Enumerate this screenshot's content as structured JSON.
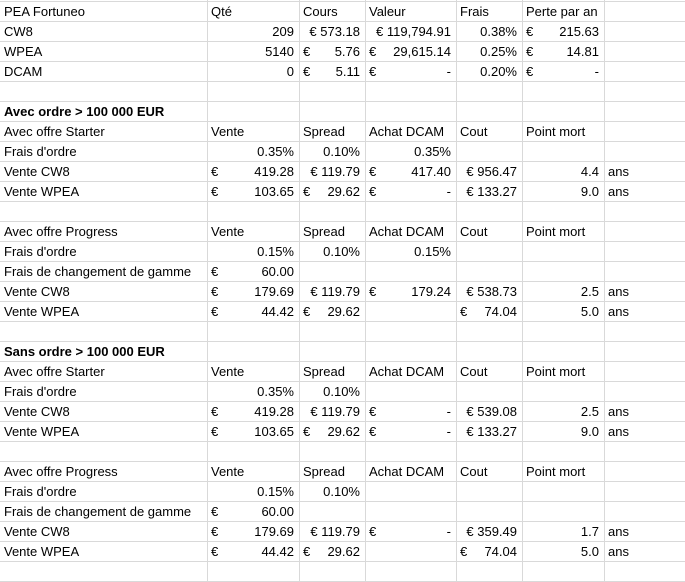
{
  "sheet": {
    "rows": [
      [
        {
          "text": "PEA Fortuneo",
          "col": 0,
          "a": "l"
        },
        {
          "text": "Qté",
          "col": 1,
          "a": "l"
        },
        {
          "text": "Cours",
          "col": 2,
          "a": "l"
        },
        {
          "text": "Valeur",
          "col": 3,
          "a": "l"
        },
        {
          "text": "Frais",
          "col": 4,
          "a": "l"
        },
        {
          "text": "Perte par an",
          "col": 5,
          "a": "l"
        }
      ],
      [
        {
          "text": "CW8",
          "col": 0,
          "a": "l"
        },
        {
          "text": "209",
          "col": 1,
          "a": "r"
        },
        {
          "text": "€ 573.18",
          "col": 2,
          "a": "r"
        },
        {
          "text": "€ 119,794.91",
          "col": 3,
          "a": "r"
        },
        {
          "text": "0.38%",
          "col": 4,
          "a": "r"
        },
        {
          "text": "€",
          "col": 5,
          "a": "l"
        },
        {
          "text": "215.63",
          "col": 5,
          "a": "r"
        }
      ],
      [
        {
          "text": "WPEA",
          "col": 0,
          "a": "l"
        },
        {
          "text": "5140",
          "col": 1,
          "a": "r"
        },
        {
          "text": "€",
          "col": 2,
          "a": "l"
        },
        {
          "text": "5.76",
          "col": 2,
          "a": "r"
        },
        {
          "text": "€",
          "col": 3,
          "a": "l"
        },
        {
          "text": "29,615.14",
          "col": 3,
          "a": "r"
        },
        {
          "text": "0.25%",
          "col": 4,
          "a": "r"
        },
        {
          "text": "€",
          "col": 5,
          "a": "l"
        },
        {
          "text": "14.81",
          "col": 5,
          "a": "r"
        }
      ],
      [
        {
          "text": "DCAM",
          "col": 0,
          "a": "l"
        },
        {
          "text": "0",
          "col": 1,
          "a": "r"
        },
        {
          "text": "€",
          "col": 2,
          "a": "l"
        },
        {
          "text": "5.11",
          "col": 2,
          "a": "r"
        },
        {
          "text": "€",
          "col": 3,
          "a": "l"
        },
        {
          "text": "-",
          "col": 3,
          "a": "r"
        },
        {
          "text": "0.20%",
          "col": 4,
          "a": "r"
        },
        {
          "text": "€",
          "col": 5,
          "a": "l"
        },
        {
          "text": "-",
          "col": 5,
          "a": "r"
        }
      ],
      [],
      [
        {
          "text": "Avec ordre > 100 000 EUR",
          "col": 0,
          "a": "l",
          "bold": true
        }
      ],
      [
        {
          "text": "Avec offre Starter",
          "col": 0,
          "a": "l"
        },
        {
          "text": "Vente",
          "col": 1,
          "a": "l"
        },
        {
          "text": "Spread",
          "col": 2,
          "a": "l"
        },
        {
          "text": "Achat DCAM",
          "col": 3,
          "a": "l"
        },
        {
          "text": "Cout",
          "col": 4,
          "a": "l"
        },
        {
          "text": "Point mort",
          "col": 5,
          "a": "l"
        }
      ],
      [
        {
          "text": "Frais d'ordre",
          "col": 0,
          "a": "l"
        },
        {
          "text": "0.35%",
          "col": 1,
          "a": "r"
        },
        {
          "text": "0.10%",
          "col": 2,
          "a": "r"
        },
        {
          "text": "0.35%",
          "col": 3,
          "a": "r"
        }
      ],
      [
        {
          "text": "Vente CW8",
          "col": 0,
          "a": "l"
        },
        {
          "text": "€",
          "col": 1,
          "a": "l"
        },
        {
          "text": "419.28",
          "col": 1,
          "a": "r"
        },
        {
          "text": "€ 119.79",
          "col": 2,
          "a": "r"
        },
        {
          "text": "€",
          "col": 3,
          "a": "l"
        },
        {
          "text": "417.40",
          "col": 3,
          "a": "r"
        },
        {
          "text": "€ 956.47",
          "col": 4,
          "a": "r"
        },
        {
          "text": "4.4",
          "col": 5,
          "a": "r"
        },
        {
          "text": "ans",
          "col": 6,
          "a": "l"
        }
      ],
      [
        {
          "text": "Vente WPEA",
          "col": 0,
          "a": "l"
        },
        {
          "text": "€",
          "col": 1,
          "a": "l"
        },
        {
          "text": "103.65",
          "col": 1,
          "a": "r"
        },
        {
          "text": "€",
          "col": 2,
          "a": "l"
        },
        {
          "text": "29.62",
          "col": 2,
          "a": "r"
        },
        {
          "text": "€",
          "col": 3,
          "a": "l"
        },
        {
          "text": "-",
          "col": 3,
          "a": "r"
        },
        {
          "text": "€ 133.27",
          "col": 4,
          "a": "r"
        },
        {
          "text": "9.0",
          "col": 5,
          "a": "r"
        },
        {
          "text": "ans",
          "col": 6,
          "a": "l"
        }
      ],
      [],
      [
        {
          "text": "Avec offre Progress",
          "col": 0,
          "a": "l"
        },
        {
          "text": "Vente",
          "col": 1,
          "a": "l"
        },
        {
          "text": "Spread",
          "col": 2,
          "a": "l"
        },
        {
          "text": "Achat DCAM",
          "col": 3,
          "a": "l"
        },
        {
          "text": "Cout",
          "col": 4,
          "a": "l"
        },
        {
          "text": "Point mort",
          "col": 5,
          "a": "l"
        }
      ],
      [
        {
          "text": "Frais d'ordre",
          "col": 0,
          "a": "l"
        },
        {
          "text": "0.15%",
          "col": 1,
          "a": "r"
        },
        {
          "text": "0.10%",
          "col": 2,
          "a": "r"
        },
        {
          "text": "0.15%",
          "col": 3,
          "a": "r"
        }
      ],
      [
        {
          "text": "Frais de changement de gamme",
          "col": 0,
          "a": "l"
        },
        {
          "text": "€",
          "col": 1,
          "a": "l"
        },
        {
          "text": "60.00",
          "col": 1,
          "a": "r"
        }
      ],
      [
        {
          "text": "Vente CW8",
          "col": 0,
          "a": "l"
        },
        {
          "text": "€",
          "col": 1,
          "a": "l"
        },
        {
          "text": "179.69",
          "col": 1,
          "a": "r"
        },
        {
          "text": "€ 119.79",
          "col": 2,
          "a": "r"
        },
        {
          "text": "€",
          "col": 3,
          "a": "l"
        },
        {
          "text": "179.24",
          "col": 3,
          "a": "r"
        },
        {
          "text": "€ 538.73",
          "col": 4,
          "a": "r"
        },
        {
          "text": "2.5",
          "col": 5,
          "a": "r"
        },
        {
          "text": "ans",
          "col": 6,
          "a": "l"
        }
      ],
      [
        {
          "text": "Vente WPEA",
          "col": 0,
          "a": "l"
        },
        {
          "text": "€",
          "col": 1,
          "a": "l"
        },
        {
          "text": "44.42",
          "col": 1,
          "a": "r"
        },
        {
          "text": "€",
          "col": 2,
          "a": "l"
        },
        {
          "text": "29.62",
          "col": 2,
          "a": "r"
        },
        {
          "text": "€",
          "col": 4,
          "a": "l"
        },
        {
          "text": "74.04",
          "col": 4,
          "a": "r"
        },
        {
          "text": "5.0",
          "col": 5,
          "a": "r"
        },
        {
          "text": "ans",
          "col": 6,
          "a": "l"
        }
      ],
      [],
      [
        {
          "text": "Sans ordre > 100 000 EUR",
          "col": 0,
          "a": "l",
          "bold": true
        }
      ],
      [
        {
          "text": "Avec offre Starter",
          "col": 0,
          "a": "l"
        },
        {
          "text": "Vente",
          "col": 1,
          "a": "l"
        },
        {
          "text": "Spread",
          "col": 2,
          "a": "l"
        },
        {
          "text": "Achat DCAM",
          "col": 3,
          "a": "l"
        },
        {
          "text": "Cout",
          "col": 4,
          "a": "l"
        },
        {
          "text": "Point mort",
          "col": 5,
          "a": "l"
        }
      ],
      [
        {
          "text": "Frais d'ordre",
          "col": 0,
          "a": "l"
        },
        {
          "text": "0.35%",
          "col": 1,
          "a": "r"
        },
        {
          "text": "0.10%",
          "col": 2,
          "a": "r"
        }
      ],
      [
        {
          "text": "Vente CW8",
          "col": 0,
          "a": "l"
        },
        {
          "text": "€",
          "col": 1,
          "a": "l"
        },
        {
          "text": "419.28",
          "col": 1,
          "a": "r"
        },
        {
          "text": "€ 119.79",
          "col": 2,
          "a": "r"
        },
        {
          "text": "€",
          "col": 3,
          "a": "l"
        },
        {
          "text": "-",
          "col": 3,
          "a": "r"
        },
        {
          "text": "€ 539.08",
          "col": 4,
          "a": "r"
        },
        {
          "text": "2.5",
          "col": 5,
          "a": "r"
        },
        {
          "text": "ans",
          "col": 6,
          "a": "l"
        }
      ],
      [
        {
          "text": "Vente WPEA",
          "col": 0,
          "a": "l"
        },
        {
          "text": "€",
          "col": 1,
          "a": "l"
        },
        {
          "text": "103.65",
          "col": 1,
          "a": "r"
        },
        {
          "text": "€",
          "col": 2,
          "a": "l"
        },
        {
          "text": "29.62",
          "col": 2,
          "a": "r"
        },
        {
          "text": "€",
          "col": 3,
          "a": "l"
        },
        {
          "text": "-",
          "col": 3,
          "a": "r"
        },
        {
          "text": "€ 133.27",
          "col": 4,
          "a": "r"
        },
        {
          "text": "9.0",
          "col": 5,
          "a": "r"
        },
        {
          "text": "ans",
          "col": 6,
          "a": "l"
        }
      ],
      [],
      [
        {
          "text": "Avec offre Progress",
          "col": 0,
          "a": "l"
        },
        {
          "text": "Vente",
          "col": 1,
          "a": "l"
        },
        {
          "text": "Spread",
          "col": 2,
          "a": "l"
        },
        {
          "text": "Achat DCAM",
          "col": 3,
          "a": "l"
        },
        {
          "text": "Cout",
          "col": 4,
          "a": "l"
        },
        {
          "text": "Point mort",
          "col": 5,
          "a": "l"
        }
      ],
      [
        {
          "text": "Frais d'ordre",
          "col": 0,
          "a": "l"
        },
        {
          "text": "0.15%",
          "col": 1,
          "a": "r"
        },
        {
          "text": "0.10%",
          "col": 2,
          "a": "r"
        }
      ],
      [
        {
          "text": "Frais de changement de gamme",
          "col": 0,
          "a": "l"
        },
        {
          "text": "€",
          "col": 1,
          "a": "l"
        },
        {
          "text": "60.00",
          "col": 1,
          "a": "r"
        }
      ],
      [
        {
          "text": "Vente CW8",
          "col": 0,
          "a": "l"
        },
        {
          "text": "€",
          "col": 1,
          "a": "l"
        },
        {
          "text": "179.69",
          "col": 1,
          "a": "r"
        },
        {
          "text": "€ 119.79",
          "col": 2,
          "a": "r"
        },
        {
          "text": "€",
          "col": 3,
          "a": "l"
        },
        {
          "text": "-",
          "col": 3,
          "a": "r"
        },
        {
          "text": "€ 359.49",
          "col": 4,
          "a": "r"
        },
        {
          "text": "1.7",
          "col": 5,
          "a": "r"
        },
        {
          "text": "ans",
          "col": 6,
          "a": "l"
        }
      ],
      [
        {
          "text": "Vente WPEA",
          "col": 0,
          "a": "l"
        },
        {
          "text": "€",
          "col": 1,
          "a": "l"
        },
        {
          "text": "44.42",
          "col": 1,
          "a": "r"
        },
        {
          "text": "€",
          "col": 2,
          "a": "l"
        },
        {
          "text": "29.62",
          "col": 2,
          "a": "r"
        },
        {
          "text": "€",
          "col": 4,
          "a": "l"
        },
        {
          "text": "74.04",
          "col": 4,
          "a": "r"
        },
        {
          "text": "5.0",
          "col": 5,
          "a": "r"
        },
        {
          "text": "ans",
          "col": 6,
          "a": "l"
        }
      ],
      []
    ]
  }
}
